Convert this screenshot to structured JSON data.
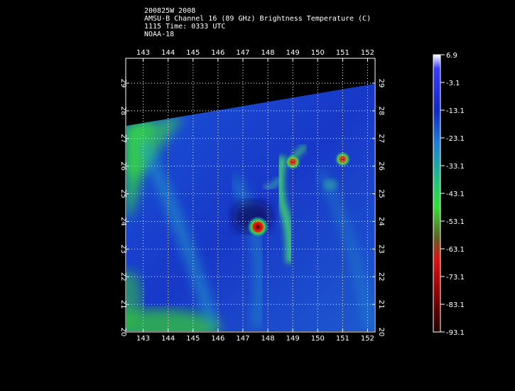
{
  "header": {
    "line1": "200825W 2008",
    "line2": "AMSU-B Channel 16 (89 GHz) Brightness Temperature (C)",
    "line3": "1115 Time: 0333 UTC",
    "line4": "NOAA-18"
  },
  "map": {
    "lon_ticks": [
      "143",
      "144",
      "145",
      "146",
      "147",
      "148",
      "149",
      "150",
      "151",
      "152"
    ],
    "lat_ticks": [
      "20",
      "21",
      "22",
      "23",
      "24",
      "25",
      "26",
      "27",
      "28",
      "29"
    ],
    "lon_range": [
      142.3,
      152.3
    ],
    "lat_range": [
      20,
      29.9
    ],
    "cold_spots": [
      {
        "lon": 147.6,
        "lat": 23.8
      },
      {
        "lon": 149.0,
        "lat": 26.15
      },
      {
        "lon": 151.0,
        "lat": 26.25
      }
    ]
  },
  "colorbar": {
    "labels": [
      "6.9",
      "-3.1",
      "-13.1",
      "-23.1",
      "-33.1",
      "-43.1",
      "-53.1",
      "-63.1",
      "-73.1",
      "-83.1",
      "-93.1"
    ],
    "range": [
      -93.1,
      6.9
    ]
  },
  "colors": {
    "background": "#000000",
    "warm": "#1a3dd6",
    "green": "#33e033",
    "red": "#e01010"
  }
}
